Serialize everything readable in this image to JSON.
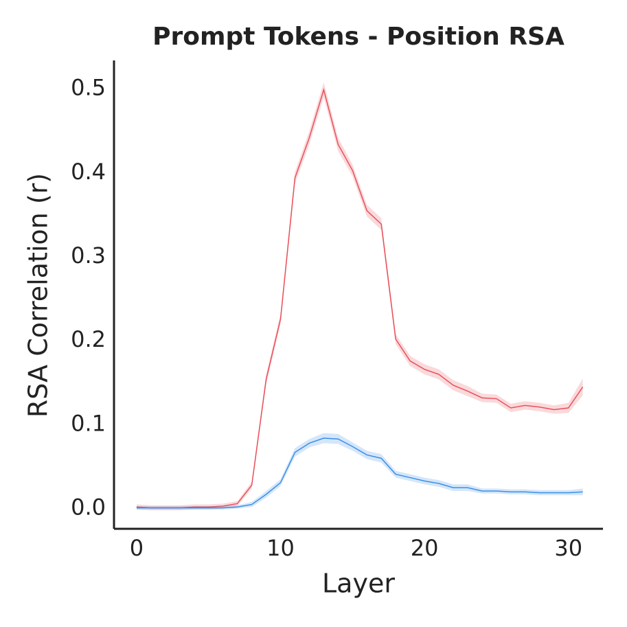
{
  "chart_data": {
    "type": "line",
    "title": "Prompt Tokens - Position RSA",
    "x_label": "Layer",
    "y_label": "RSA Correlation (r)",
    "x": [
      0,
      1,
      2,
      3,
      4,
      5,
      6,
      7,
      8,
      9,
      10,
      11,
      12,
      13,
      14,
      15,
      16,
      17,
      18,
      19,
      20,
      21,
      22,
      23,
      24,
      25,
      26,
      27,
      28,
      29,
      30,
      31
    ],
    "series": [
      {
        "color": "#e8505b",
        "values": [
          0.002,
          0.001,
          0.001,
          0.001,
          0.002,
          0.002,
          0.003,
          0.006,
          0.028,
          0.154,
          0.226,
          0.394,
          0.442,
          0.499,
          0.434,
          0.403,
          0.355,
          0.339,
          0.202,
          0.176,
          0.166,
          0.16,
          0.147,
          0.14,
          0.132,
          0.131,
          0.12,
          0.123,
          0.121,
          0.118,
          0.12,
          0.145
        ],
        "errors": [
          0.003,
          0.003,
          0.003,
          0.003,
          0.003,
          0.003,
          0.003,
          0.003,
          0.004,
          0.006,
          0.006,
          0.007,
          0.008,
          0.009,
          0.008,
          0.007,
          0.007,
          0.007,
          0.006,
          0.006,
          0.006,
          0.006,
          0.006,
          0.006,
          0.005,
          0.005,
          0.005,
          0.005,
          0.005,
          0.005,
          0.006,
          0.01
        ]
      },
      {
        "color": "#3a8ee6",
        "values": [
          0.001,
          0.001,
          0.001,
          0.001,
          0.001,
          0.001,
          0.001,
          0.002,
          0.005,
          0.017,
          0.031,
          0.067,
          0.078,
          0.084,
          0.083,
          0.074,
          0.064,
          0.06,
          0.041,
          0.037,
          0.033,
          0.03,
          0.025,
          0.025,
          0.021,
          0.021,
          0.02,
          0.02,
          0.019,
          0.019,
          0.019,
          0.02
        ],
        "errors": [
          0.002,
          0.002,
          0.002,
          0.002,
          0.002,
          0.002,
          0.002,
          0.002,
          0.003,
          0.004,
          0.004,
          0.005,
          0.005,
          0.006,
          0.006,
          0.005,
          0.005,
          0.005,
          0.004,
          0.004,
          0.004,
          0.004,
          0.004,
          0.004,
          0.003,
          0.003,
          0.003,
          0.003,
          0.003,
          0.003,
          0.003,
          0.004
        ]
      }
    ],
    "xlim": [
      -1.57,
      32.4
    ],
    "xticks": [
      0,
      10,
      20,
      30
    ],
    "ylim": [
      -0.024,
      0.534
    ],
    "yticks": [
      0.0,
      0.1,
      0.2,
      0.3,
      0.4,
      0.5
    ]
  }
}
